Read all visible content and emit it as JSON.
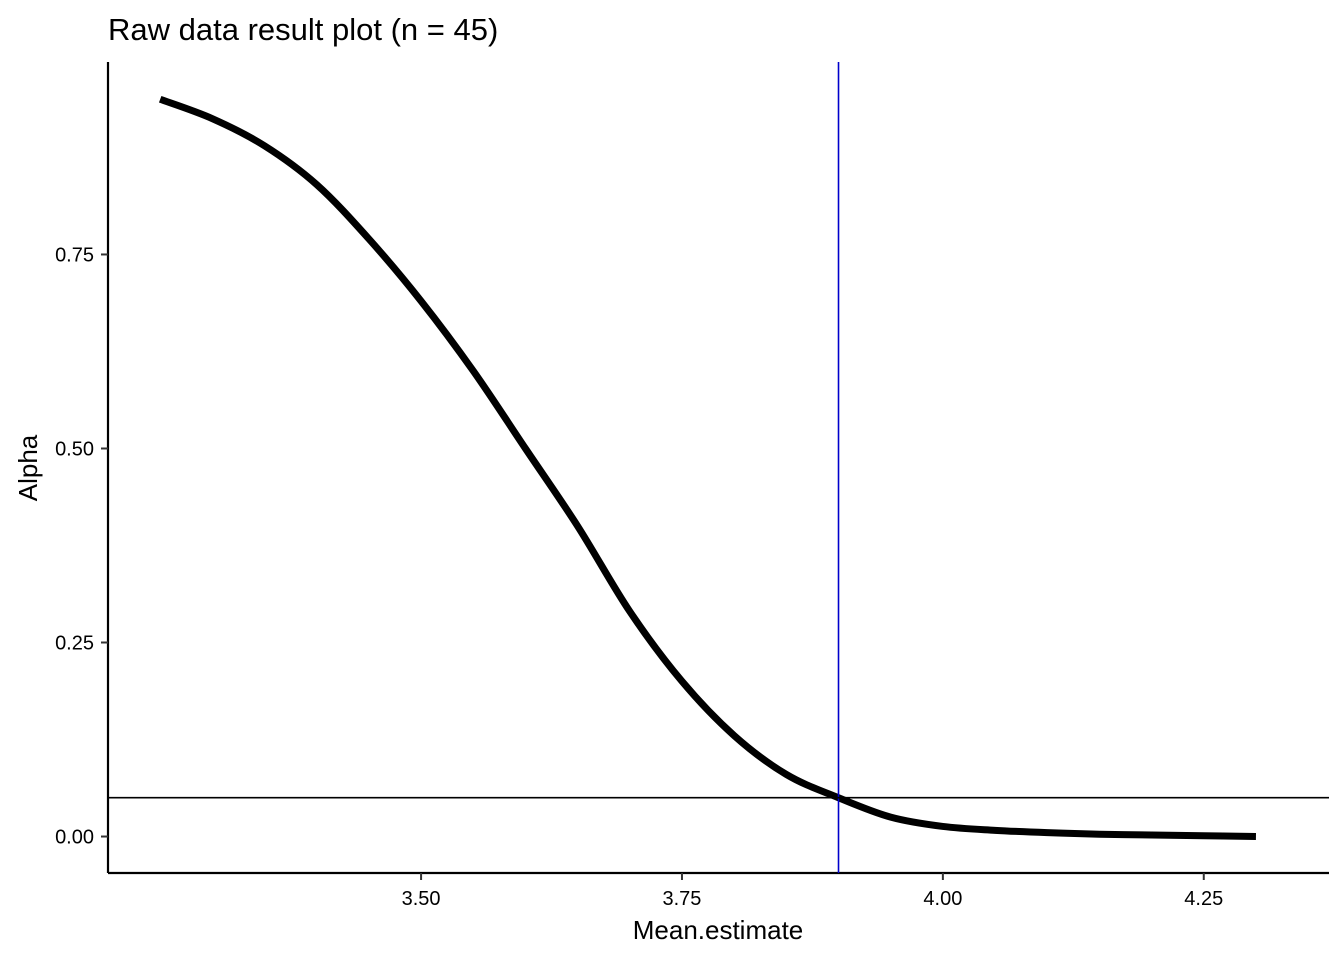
{
  "chart_data": {
    "type": "line",
    "title": "Raw data result plot (n = 45)",
    "xlabel": "Mean.estimate",
    "ylabel": "Alpha",
    "xlim": [
      3.2,
      4.37
    ],
    "ylim": [
      -0.047,
      0.998
    ],
    "x_ticks": [
      3.5,
      3.75,
      4.0,
      4.25
    ],
    "x_tick_labels": [
      "3.50",
      "3.75",
      "4.00",
      "4.25"
    ],
    "y_ticks": [
      0.0,
      0.25,
      0.5,
      0.75
    ],
    "y_tick_labels": [
      "0.00",
      "0.25",
      "0.50",
      "0.75"
    ],
    "grid": false,
    "legend": "none",
    "series": [
      {
        "color": "#000000",
        "x": [
          3.25,
          3.3,
          3.35,
          3.4,
          3.45,
          3.5,
          3.55,
          3.6,
          3.65,
          3.7,
          3.75,
          3.8,
          3.85,
          3.9,
          3.95,
          4.0,
          4.05,
          4.1,
          4.15,
          4.2,
          4.25,
          4.3
        ],
        "y": [
          0.95,
          0.925,
          0.89,
          0.84,
          0.77,
          0.69,
          0.6,
          0.5,
          0.4,
          0.29,
          0.2,
          0.13,
          0.08,
          0.05,
          0.025,
          0.013,
          0.008,
          0.005,
          0.003,
          0.002,
          0.001,
          0.0
        ]
      }
    ],
    "reference_lines": [
      {
        "orientation": "vertical",
        "value": 3.9,
        "color": "#0000cc"
      },
      {
        "orientation": "horizontal",
        "value": 0.05,
        "color": "#000000"
      }
    ]
  }
}
